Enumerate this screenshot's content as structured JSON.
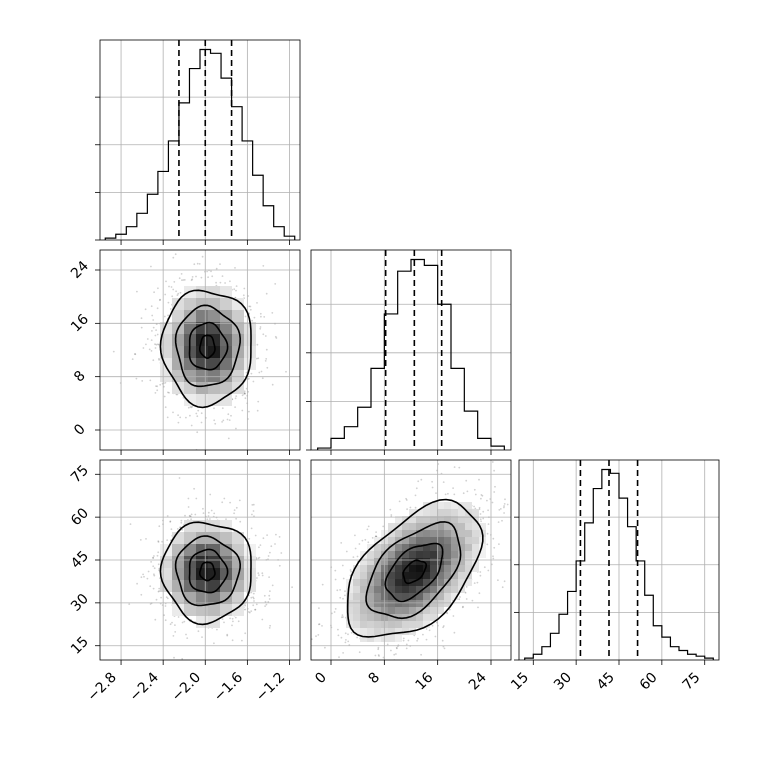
{
  "chart_data": {
    "type": "corner",
    "grid": true,
    "parameters": [
      {
        "id": "p0",
        "range": [
          -3.0,
          -1.1
        ],
        "ticks": [
          -2.8,
          -2.4,
          -2.0,
          -1.6,
          -1.2
        ],
        "tick_labels": [
          "−2.8",
          "−2.4",
          "−2.0",
          "−1.6",
          "−1.2"
        ],
        "quantiles": [
          -2.25,
          -2.0,
          -1.75
        ],
        "histogram": {
          "bin_edges": [
            -2.95,
            -2.85,
            -2.75,
            -2.65,
            -2.55,
            -2.45,
            -2.35,
            -2.25,
            -2.15,
            -2.05,
            -1.95,
            -1.85,
            -1.75,
            -1.65,
            -1.55,
            -1.45,
            -1.35,
            -1.25,
            -1.15
          ],
          "counts": [
            1,
            3,
            7,
            14,
            24,
            36,
            52,
            72,
            90,
            100,
            98,
            85,
            70,
            52,
            34,
            18,
            7,
            2
          ]
        }
      },
      {
        "id": "p1",
        "range": [
          -3,
          27
        ],
        "ticks": [
          0,
          8,
          16,
          24
        ],
        "tick_labels": [
          "0",
          "8",
          "16",
          "24"
        ],
        "quantiles": [
          8.2,
          12.5,
          16.6
        ],
        "histogram": {
          "bin_edges": [
            -2,
            0,
            2,
            4,
            6,
            8,
            10,
            12,
            14,
            16,
            18,
            20,
            22,
            24,
            26
          ],
          "counts": [
            1,
            6,
            12,
            22,
            42,
            70,
            92,
            98,
            95,
            75,
            42,
            20,
            6,
            2
          ]
        }
      },
      {
        "id": "p2",
        "range": [
          10,
          80
        ],
        "ticks": [
          15,
          30,
          45,
          60,
          75
        ],
        "tick_labels": [
          "15",
          "30",
          "45",
          "60",
          "75"
        ],
        "quantiles": [
          31.5,
          41.5,
          51.5
        ],
        "histogram": {
          "bin_edges": [
            12,
            15,
            18,
            21,
            24,
            27,
            30,
            33,
            36,
            39,
            42,
            45,
            48,
            51,
            54,
            57,
            60,
            63,
            66,
            69,
            72,
            75,
            78
          ],
          "counts": [
            1,
            3,
            7,
            14,
            24,
            36,
            52,
            72,
            90,
            100,
            98,
            85,
            70,
            52,
            34,
            18,
            12,
            7,
            5,
            3,
            2,
            1
          ]
        }
      }
    ],
    "pairs": [
      {
        "x": "p0",
        "y": "p1",
        "center": [
          -1.98,
          12.5
        ],
        "contour_levels": [
          {
            "rx": 0.07,
            "ry": 1.7
          },
          {
            "rx": 0.18,
            "ry": 3.5
          },
          {
            "rx": 0.3,
            "ry": 6.0
          },
          {
            "rx": 0.43,
            "ry": 8.6
          }
        ]
      },
      {
        "x": "p0",
        "y": "p2",
        "center": [
          -1.98,
          41.0
        ],
        "contour_levels": [
          {
            "rx": 0.07,
            "ry": 3.2
          },
          {
            "rx": 0.18,
            "ry": 7.5
          },
          {
            "rx": 0.3,
            "ry": 12.0
          },
          {
            "rx": 0.43,
            "ry": 17.5
          }
        ]
      },
      {
        "x": "p1",
        "y": "p2",
        "center": [
          12.5,
          41.0
        ],
        "contour_levels": [
          {
            "u": 2.0,
            "v": 1.3
          },
          {
            "u": 5.2,
            "v": 3.0
          },
          {
            "u": 8.6,
            "v": 5.0
          },
          {
            "u": 12.4,
            "v": 7.2
          }
        ]
      }
    ]
  }
}
